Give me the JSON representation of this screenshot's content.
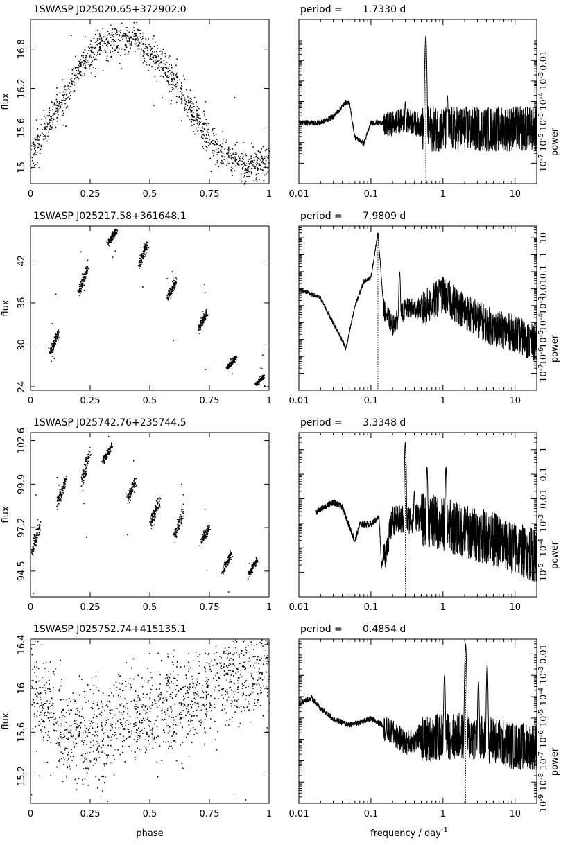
{
  "figure": {
    "xlabel_phase": "phase",
    "xlabel_frequency": "frequency / day",
    "xlabel_frequency_sup": "-1",
    "ylabel_flux": "flux",
    "ylabel_power": "power",
    "period_label": "period ="
  },
  "chart_data": [
    {
      "type": "scatter",
      "title": "1SWASP J025020.65+372902.0",
      "xlabel": "phase",
      "ylabel": "flux",
      "xlim": [
        0,
        1
      ],
      "ylim": [
        14.75,
        17.25
      ],
      "xticks": [
        0,
        0.25,
        0.5,
        0.75,
        1
      ],
      "xtick_labels": [
        "0",
        "0.25",
        "0.5",
        "0.75",
        "1"
      ],
      "yticks": [
        15,
        15.6,
        16.2,
        16.8
      ],
      "ytick_labels": [
        "15",
        "15.6",
        "16.2",
        "16.8"
      ],
      "trend": {
        "x": [
          0,
          0.1,
          0.2,
          0.3,
          0.38,
          0.45,
          0.55,
          0.65,
          0.72,
          0.8,
          0.9,
          1.0
        ],
        "y": [
          15.2,
          15.8,
          16.5,
          16.9,
          16.95,
          16.9,
          16.6,
          16.0,
          15.6,
          15.25,
          15.0,
          15.1
        ]
      },
      "scatter": 0.12,
      "n_points": 1200
    },
    {
      "type": "line",
      "title": "period =",
      "period": "1.7330 d",
      "xlabel": "frequency / day-1",
      "ylabel": "power",
      "xscale": "log",
      "yscale": "log",
      "xlim": [
        0.01,
        20
      ],
      "ylim": [
        1e-08,
        1
      ],
      "xticks": [
        0.01,
        0.1,
        1,
        10
      ],
      "xtick_labels": [
        "0.01",
        "0.1",
        "1",
        "10"
      ],
      "yticks": [
        1e-07,
        1e-06,
        1e-05,
        0.0001,
        0.001,
        0.01
      ],
      "ytick_labels": [
        "10-7",
        "10-6",
        "10-5",
        "10-4",
        "10-3",
        "0.01"
      ],
      "peak_frequency": 0.577,
      "peak_power": 0.15,
      "envelope": {
        "x": [
          0.01,
          0.02,
          0.03,
          0.045,
          0.05,
          0.06,
          0.08,
          0.1,
          0.15,
          0.3,
          0.5,
          1,
          2,
          5,
          10,
          20
        ],
        "y": [
          1e-05,
          1e-05,
          2e-05,
          0.0001,
          0.0001,
          2e-06,
          1e-06,
          1e-05,
          1e-05,
          2e-05,
          1e-05,
          1e-05,
          1e-05,
          1e-05,
          1e-05,
          1e-05
        ]
      },
      "extra_peaks": [
        {
          "f": 0.3,
          "p": 0.0001
        },
        {
          "f": 1.15,
          "p": 0.0002
        }
      ]
    },
    {
      "type": "scatter",
      "title": "1SWASP J025217.58+361648.1",
      "xlabel": "phase",
      "ylabel": "flux",
      "xlim": [
        0,
        1
      ],
      "ylim": [
        23.5,
        47
      ],
      "xticks": [
        0,
        0.25,
        0.5,
        0.75,
        1
      ],
      "xtick_labels": [
        "0",
        "0.25",
        "0.5",
        "0.75",
        "1"
      ],
      "yticks": [
        24,
        30,
        36,
        42
      ],
      "ytick_labels": [
        "24",
        "30",
        "36",
        "42"
      ],
      "clusters": [
        {
          "x": 0.1,
          "y": 30.5,
          "spread": 1.8
        },
        {
          "x": 0.22,
          "y": 39.5,
          "spread": 2.2
        },
        {
          "x": 0.34,
          "y": 45.5,
          "spread": 1.2
        },
        {
          "x": 0.47,
          "y": 43.0,
          "spread": 2.0
        },
        {
          "x": 0.59,
          "y": 38.0,
          "spread": 1.5
        },
        {
          "x": 0.72,
          "y": 33.5,
          "spread": 1.4
        },
        {
          "x": 0.84,
          "y": 27.5,
          "spread": 1.0
        },
        {
          "x": 0.96,
          "y": 25.0,
          "spread": 0.8
        }
      ],
      "n_points": 900
    },
    {
      "type": "line",
      "title": "period =",
      "period": "7.9809 d",
      "xlabel": "frequency / day-1",
      "ylabel": "power",
      "xscale": "log",
      "yscale": "log",
      "xlim": [
        0.01,
        20
      ],
      "ylim": [
        1e-08,
        50
      ],
      "xticks": [
        0.01,
        0.1,
        1,
        10
      ],
      "xtick_labels": [
        "0.01",
        "0.1",
        "1",
        "10"
      ],
      "yticks": [
        1e-07,
        1e-06,
        1e-05,
        0.0001,
        0.001,
        0.01,
        0.1,
        1,
        10
      ],
      "ytick_labels": [
        "10-7",
        "10-6",
        "10-5",
        "10-4",
        "10-3",
        "0.01",
        "0.1",
        "1",
        "10"
      ],
      "peak_frequency": 0.125,
      "peak_power": 20,
      "envelope": {
        "x": [
          0.01,
          0.02,
          0.03,
          0.04,
          0.045,
          0.06,
          0.08,
          0.1,
          0.125,
          0.15,
          0.2,
          0.3,
          0.5,
          1,
          2,
          5,
          10,
          20
        ],
        "y": [
          0.01,
          0.003,
          0.0001,
          1e-05,
          3e-06,
          0.001,
          0.03,
          0.05,
          20,
          0.001,
          0.0001,
          0.001,
          0.001,
          0.01,
          0.001,
          0.0001,
          5e-05,
          1e-05
        ]
      },
      "extra_peaks": [
        {
          "f": 0.25,
          "p": 0.1
        },
        {
          "f": 0.9,
          "p": 0.03
        }
      ]
    },
    {
      "type": "scatter",
      "title": "1SWASP J025742.76+235744.5",
      "xlabel": "phase",
      "ylabel": "flux",
      "xlim": [
        0,
        1
      ],
      "ylim": [
        92.9,
        103.1
      ],
      "xticks": [
        0,
        0.25,
        0.5,
        0.75,
        1
      ],
      "xtick_labels": [
        "0",
        "0.25",
        "0.5",
        "0.75",
        "1"
      ],
      "yticks": [
        94.5,
        97.2,
        99.9,
        102.6
      ],
      "ytick_labels": [
        "94.5",
        "97.2",
        "99.9",
        "102.6"
      ],
      "clusters": [
        {
          "x": 0.02,
          "y": 96.5,
          "spread": 1.2
        },
        {
          "x": 0.13,
          "y": 99.5,
          "spread": 1.0
        },
        {
          "x": 0.23,
          "y": 101.0,
          "spread": 1.3
        },
        {
          "x": 0.32,
          "y": 101.8,
          "spread": 0.6
        },
        {
          "x": 0.42,
          "y": 99.5,
          "spread": 0.8
        },
        {
          "x": 0.52,
          "y": 98.2,
          "spread": 0.9
        },
        {
          "x": 0.62,
          "y": 97.5,
          "spread": 1.0
        },
        {
          "x": 0.73,
          "y": 96.8,
          "spread": 0.6
        },
        {
          "x": 0.82,
          "y": 95.0,
          "spread": 0.7
        },
        {
          "x": 0.93,
          "y": 94.8,
          "spread": 0.6
        }
      ],
      "n_points": 900
    },
    {
      "type": "line",
      "title": "period =",
      "period": "3.3348 d",
      "xlabel": "frequency / day-1",
      "ylabel": "power",
      "xscale": "log",
      "yscale": "log",
      "xlim": [
        0.01,
        20
      ],
      "ylim": [
        1e-06,
        5
      ],
      "xticks": [
        0.01,
        0.1,
        1,
        10
      ],
      "xtick_labels": [
        "0.01",
        "0.1",
        "1",
        "10"
      ],
      "yticks": [
        1e-05,
        0.0001,
        0.001,
        0.01,
        0.1,
        1
      ],
      "ytick_labels": [
        "10-5",
        "10-4",
        "10-3",
        "0.01",
        "0.1",
        "1"
      ],
      "peak_frequency": 0.3,
      "peak_power": 2,
      "envelope": {
        "x": [
          0.017,
          0.03,
          0.04,
          0.06,
          0.07,
          0.1,
          0.13,
          0.14,
          0.2,
          0.3,
          0.5,
          1,
          2,
          5,
          10,
          20
        ],
        "y": [
          0.003,
          0.008,
          0.005,
          0.0002,
          0.001,
          0.001,
          0.002,
          2e-05,
          0.002,
          0.002,
          0.003,
          0.002,
          0.001,
          0.0005,
          0.0002,
          0.0001
        ]
      },
      "extra_peaks": [
        {
          "f": 0.6,
          "p": 0.2
        },
        {
          "f": 1.1,
          "p": 0.2
        },
        {
          "f": 0.4,
          "p": 0.02
        }
      ]
    },
    {
      "type": "scatter",
      "title": "1SWASP J025752.74+415135.1",
      "xlabel": "phase",
      "ylabel": "flux",
      "xlim": [
        0,
        1
      ],
      "ylim": [
        14.95,
        16.45
      ],
      "xticks": [
        0,
        0.25,
        0.5,
        0.75,
        1
      ],
      "xtick_labels": [
        "0",
        "0.25",
        "0.5",
        "0.75",
        "1"
      ],
      "yticks": [
        15.2,
        15.6,
        16,
        16.4
      ],
      "ytick_labels": [
        "15.2",
        "15.6",
        "16",
        "16.4"
      ],
      "trend": {
        "x": [
          0,
          0.1,
          0.2,
          0.3,
          0.45,
          0.6,
          0.75,
          0.85,
          1.0
        ],
        "y": [
          16.0,
          15.7,
          15.55,
          15.6,
          15.75,
          15.85,
          16.0,
          16.15,
          16.15
        ]
      },
      "scatter": 0.22,
      "n_points": 1400
    },
    {
      "type": "line",
      "title": "period =",
      "period": "0.4854 d",
      "xlabel": "frequency / day-1",
      "ylabel": "power",
      "xscale": "log",
      "yscale": "log",
      "xlim": [
        0.01,
        20
      ],
      "ylim": [
        1e-09,
        0.05
      ],
      "xticks": [
        0.01,
        0.1,
        1,
        10
      ],
      "xtick_labels": [
        "0.01",
        "0.1",
        "1",
        "10"
      ],
      "yticks": [
        1e-09,
        1e-08,
        1e-07,
        1e-06,
        1e-05,
        0.0001,
        0.001,
        0.01
      ],
      "ytick_labels": [
        "10-9",
        "10-8",
        "10-7",
        "10-6",
        "10-5",
        "10-4",
        "10-3",
        "0.01"
      ],
      "peak_frequency": 2.06,
      "peak_power": 0.03,
      "envelope": {
        "x": [
          0.01,
          0.015,
          0.02,
          0.03,
          0.05,
          0.1,
          0.2,
          0.3,
          0.5,
          1,
          2,
          5,
          10,
          20
        ],
        "y": [
          5e-05,
          0.0001,
          3e-05,
          1e-05,
          5e-06,
          1e-05,
          3e-06,
          1e-06,
          2e-06,
          3e-06,
          3e-06,
          2e-06,
          1e-06,
          1e-06
        ]
      },
      "extra_peaks": [
        {
          "f": 1.05,
          "p": 0.001
        },
        {
          "f": 4.1,
          "p": 0.003
        },
        {
          "f": 3.1,
          "p": 0.0005
        }
      ]
    }
  ]
}
